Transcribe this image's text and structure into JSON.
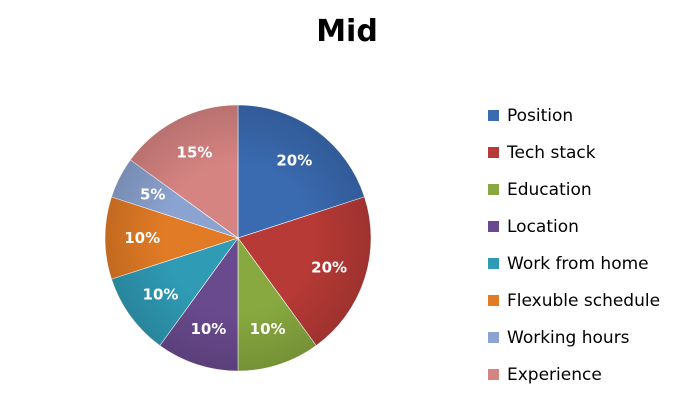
{
  "chart_data": {
    "type": "pie",
    "title": "Mid",
    "legend_position": "right",
    "slices": [
      {
        "label": "Position",
        "value": 20,
        "value_label": "20%",
        "color": "#3a6ab0"
      },
      {
        "label": "Tech stack",
        "value": 20,
        "value_label": "20%",
        "color": "#b83a36"
      },
      {
        "label": "Education",
        "value": 10,
        "value_label": "10%",
        "color": "#88a93f"
      },
      {
        "label": "Location",
        "value": 10,
        "value_label": "10%",
        "color": "#6a4a8f"
      },
      {
        "label": "Work from home",
        "value": 10,
        "value_label": "10%",
        "color": "#2f9bb5"
      },
      {
        "label": "Flexuble schedule",
        "value": 10,
        "value_label": "10%",
        "color": "#e27b25"
      },
      {
        "label": "Working hours",
        "value": 5,
        "value_label": "5%",
        "color": "#8ba3d0"
      },
      {
        "label": "Experience",
        "value": 15,
        "value_label": "15%",
        "color": "#d68482"
      }
    ]
  }
}
